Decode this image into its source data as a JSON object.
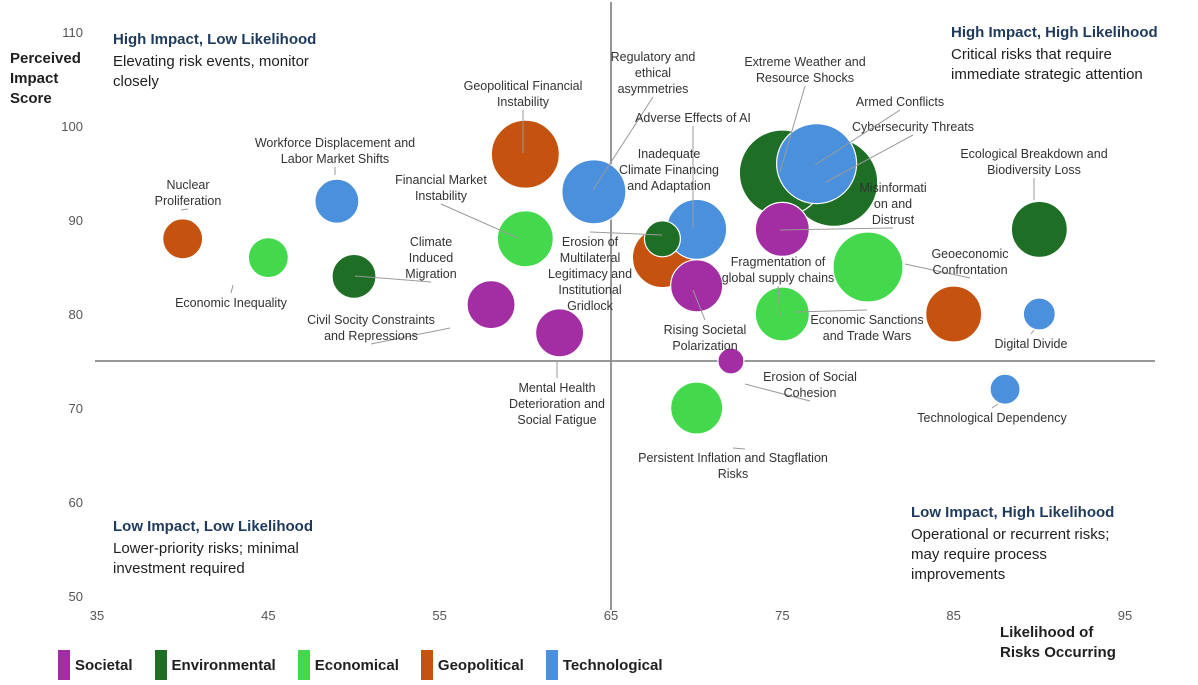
{
  "chart_data": {
    "type": "bubble",
    "xlabel": [
      "Likelihood of",
      "Risks Occurring"
    ],
    "ylabel": [
      "Perceived",
      "Impact",
      "Score"
    ],
    "xlim": [
      35,
      95
    ],
    "ylim": [
      50,
      110
    ],
    "x_ticks": [
      35,
      45,
      55,
      65,
      75,
      85,
      95
    ],
    "y_ticks": [
      50,
      60,
      70,
      80,
      90,
      100,
      110
    ],
    "divider": {
      "x": 65,
      "y": 75
    },
    "quadrants": [
      {
        "id": "hi-lo",
        "title": "High Impact, Low Likelihood",
        "desc": [
          "Elevating risk events, monitor",
          "closely"
        ]
      },
      {
        "id": "hi-hi",
        "title": "High Impact, High Likelihood",
        "desc": [
          "Critical risks that require",
          "immediate strategic attention"
        ]
      },
      {
        "id": "lo-lo",
        "title": "Low Impact, Low Likelihood",
        "desc": [
          "Lower-priority risks; minimal",
          "investment required"
        ]
      },
      {
        "id": "lo-hi",
        "title": "Low Impact, High Likelihood",
        "desc": [
          "Operational or recurrent risks;",
          "may require process",
          "improvements"
        ]
      }
    ],
    "categories": [
      {
        "name": "Societal",
        "color": "#a32da3"
      },
      {
        "name": "Environmental",
        "color": "#1e6e25"
      },
      {
        "name": "Economical",
        "color": "#44d84c"
      },
      {
        "name": "Geopolitical",
        "color": "#c5520f"
      },
      {
        "name": "Technological",
        "color": "#4a90dc"
      }
    ],
    "points": [
      {
        "label": [
          "Nuclear",
          "Proliferation"
        ],
        "x": 40,
        "y": 88,
        "size": 1.0,
        "category": "Geopolitical"
      },
      {
        "label": [
          "Economic Inequality"
        ],
        "x": 45,
        "y": 86,
        "size": 1.0,
        "category": "Economical"
      },
      {
        "label": [
          "Workforce Displacement and",
          "Labor Market Shifts"
        ],
        "x": 49,
        "y": 92,
        "size": 1.1,
        "category": "Technological"
      },
      {
        "label": [
          "Climate",
          "Induced",
          "Migration"
        ],
        "x": 50,
        "y": 84,
        "size": 1.1,
        "category": "Environmental"
      },
      {
        "label": [
          "Civil Socity Constraints",
          "and Repressions"
        ],
        "x": 58,
        "y": 81,
        "size": 1.2,
        "category": "Societal"
      },
      {
        "label": [
          "Financial Market",
          "Instability"
        ],
        "x": 60,
        "y": 88,
        "size": 1.4,
        "category": "Economical"
      },
      {
        "label": [
          "Geopolitical Financial",
          "Instability"
        ],
        "x": 60,
        "y": 97,
        "size": 1.7,
        "category": "Geopolitical"
      },
      {
        "label": [
          "Mental Health",
          "Deterioration and",
          "Social Fatigue"
        ],
        "x": 62,
        "y": 78,
        "size": 1.2,
        "category": "Societal"
      },
      {
        "label": [
          "Regulatory and",
          "ethical",
          "asymmetries"
        ],
        "x": 64,
        "y": 93,
        "size": 1.6,
        "category": "Technological"
      },
      {
        "label": [
          "Inadequate",
          "Climate Financing",
          "and Adaptation"
        ],
        "x": 68,
        "y": 88,
        "size": 0.9,
        "category": "Environmental"
      },
      {
        "label": [
          "Erosion of",
          "Multilateral",
          "Legitimacy and",
          "Institutional",
          "Gridlock"
        ],
        "x": 68,
        "y": 86,
        "size": 1.5,
        "category": "Geopolitical"
      },
      {
        "label": [
          "Adverse Effects of AI"
        ],
        "x": 70,
        "y": 89,
        "size": 1.5,
        "category": "Technological"
      },
      {
        "label": [
          "Rising Societal",
          "Polarization"
        ],
        "x": 70,
        "y": 83,
        "size": 1.3,
        "category": "Societal"
      },
      {
        "label": [
          "Persistent Inflation and Stagflation",
          "Risks"
        ],
        "x": 70,
        "y": 70,
        "size": 1.3,
        "category": "Economical"
      },
      {
        "label": [
          "Erosion of Social",
          "Cohesion"
        ],
        "x": 72,
        "y": 75,
        "size": 0.65,
        "category": "Societal"
      },
      {
        "label": [
          "Extreme Weather and",
          "Resource Shocks"
        ],
        "x": 75,
        "y": 95,
        "size": 2.15,
        "category": "Environmental"
      },
      {
        "label": [
          "Misinformati",
          "on and",
          "Distrust"
        ],
        "x": 75,
        "y": 89,
        "size": 1.35,
        "category": "Societal"
      },
      {
        "label": [
          "Fragmentation of",
          "global supply chains"
        ],
        "x": 75,
        "y": 80,
        "size": 1.35,
        "category": "Economical"
      },
      {
        "label": [
          "Cybersecurity Threats"
        ],
        "x": 78,
        "y": 94,
        "size": 2.2,
        "category": "Environmental"
      },
      {
        "label": [
          "Armed Conflicts"
        ],
        "x": 77,
        "y": 96,
        "size": 2.0,
        "category": "Technological"
      },
      {
        "label": [
          "Geoeconomic",
          "Confrontation"
        ],
        "x": 80,
        "y": 85,
        "size": 1.75,
        "category": "Economical"
      },
      {
        "label": [
          "Economic Sanctions",
          "and Trade Wars"
        ],
        "x": 85,
        "y": 80,
        "size": 1.4,
        "category": "Geopolitical"
      },
      {
        "label": [
          "Ecological Breakdown and",
          "Biodiversity Loss"
        ],
        "x": 90,
        "y": 89,
        "size": 1.4,
        "category": "Environmental"
      },
      {
        "label": [
          "Digital Divide"
        ],
        "x": 90,
        "y": 80,
        "size": 0.8,
        "category": "Technological"
      },
      {
        "label": [
          "Technological Dependency"
        ],
        "x": 88,
        "y": 72,
        "size": 0.75,
        "category": "Technological"
      }
    ]
  }
}
